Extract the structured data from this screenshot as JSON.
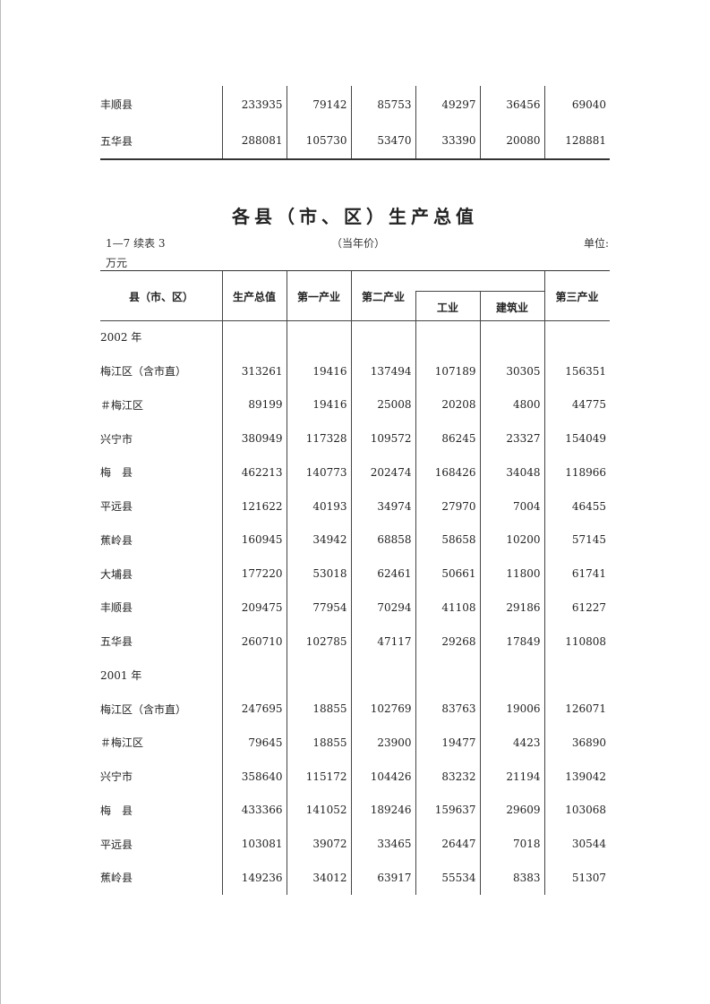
{
  "top_fragment": {
    "rows": [
      {
        "name": "丰顺县",
        "values": [
          "233935",
          "79142",
          "85753",
          "49297",
          "36456",
          "69040"
        ]
      },
      {
        "name": "五华县",
        "values": [
          "288081",
          "105730",
          "53470",
          "33390",
          "20080",
          "128881"
        ]
      }
    ]
  },
  "title": "各县（市、区）生产总值",
  "table_no": "1—7  续表 3",
  "price_note": "（当年价）",
  "unit_label": "单位:",
  "unit_value": "万元",
  "headers": {
    "region": "县（市、区）",
    "gdp": "生产总值",
    "primary": "第一产业",
    "secondary": "第二产业",
    "industry": "工业",
    "construction": "建筑业",
    "tertiary": "第三产业"
  },
  "rows": [
    {
      "name": "2002 年",
      "level": 0,
      "values": []
    },
    {
      "name": "梅江区（含市直）",
      "level": 1,
      "values": [
        "313261",
        "19416",
        "137494",
        "107189",
        "30305",
        "156351"
      ]
    },
    {
      "name": "＃梅江区",
      "level": 2,
      "values": [
        "89199",
        "19416",
        "25008",
        "20208",
        "4800",
        "44775"
      ]
    },
    {
      "name": "兴宁市",
      "level": 1,
      "values": [
        "380949",
        "117328",
        "109572",
        "86245",
        "23327",
        "154049"
      ]
    },
    {
      "name": "梅　县",
      "level": 1,
      "values": [
        "462213",
        "140773",
        "202474",
        "168426",
        "34048",
        "118966"
      ]
    },
    {
      "name": "平远县",
      "level": 1,
      "values": [
        "121622",
        "40193",
        "34974",
        "27970",
        "7004",
        "46455"
      ]
    },
    {
      "name": "蕉岭县",
      "level": 1,
      "values": [
        "160945",
        "34942",
        "68858",
        "58658",
        "10200",
        "57145"
      ]
    },
    {
      "name": "大埔县",
      "level": 1,
      "values": [
        "177220",
        "53018",
        "62461",
        "50661",
        "11800",
        "61741"
      ]
    },
    {
      "name": "丰顺县",
      "level": 1,
      "values": [
        "209475",
        "77954",
        "70294",
        "41108",
        "29186",
        "61227"
      ]
    },
    {
      "name": "五华县",
      "level": 1,
      "values": [
        "260710",
        "102785",
        "47117",
        "29268",
        "17849",
        "110808"
      ]
    },
    {
      "name": "2001 年",
      "level": 0,
      "values": []
    },
    {
      "name": "梅江区（含市直）",
      "level": 1,
      "values": [
        "247695",
        "18855",
        "102769",
        "83763",
        "19006",
        "126071"
      ]
    },
    {
      "name": "＃梅江区",
      "level": 2,
      "values": [
        "79645",
        "18855",
        "23900",
        "19477",
        "4423",
        "36890"
      ]
    },
    {
      "name": "兴宁市",
      "level": 1,
      "values": [
        "358640",
        "115172",
        "104426",
        "83232",
        "21194",
        "139042"
      ]
    },
    {
      "name": "梅　县",
      "level": 1,
      "values": [
        "433366",
        "141052",
        "189246",
        "159637",
        "29609",
        "103068"
      ]
    },
    {
      "name": "平远县",
      "level": 1,
      "values": [
        "103081",
        "39072",
        "33465",
        "26447",
        "7018",
        "30544"
      ]
    },
    {
      "name": "蕉岭县",
      "level": 1,
      "values": [
        "149236",
        "34012",
        "63917",
        "55534",
        "8383",
        "51307"
      ]
    }
  ]
}
